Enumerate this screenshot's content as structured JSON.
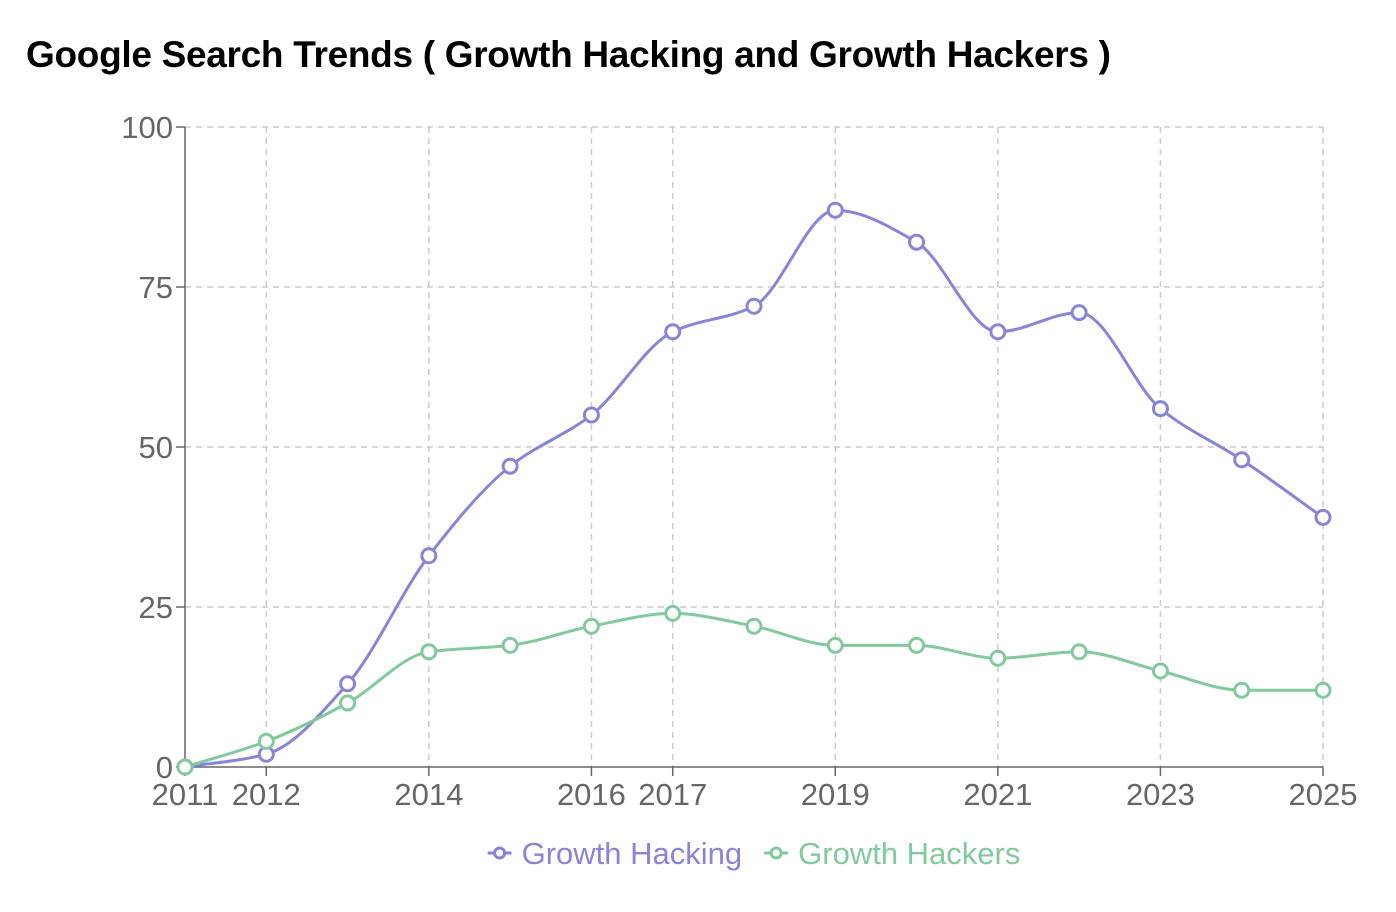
{
  "chart_data": {
    "type": "line",
    "title": "Google Search Trends ( Growth Hacking and Growth Hackers )",
    "xlabel": "",
    "ylabel": "",
    "x": [
      2011,
      2012,
      2013,
      2014,
      2015,
      2016,
      2017,
      2018,
      2019,
      2020,
      2021,
      2022,
      2023,
      2024,
      2025
    ],
    "x_ticks": [
      "2011",
      "2012",
      "2014",
      "2016",
      "2017",
      "2019",
      "2021",
      "2023",
      "2025"
    ],
    "y_ticks": [
      "0",
      "25",
      "50",
      "75",
      "100"
    ],
    "ylim": [
      0,
      100
    ],
    "grid": true,
    "legend_position": "bottom",
    "series": [
      {
        "name": "Growth Hacking",
        "color": "#8884d8",
        "values": [
          0,
          2,
          13,
          33,
          47,
          55,
          68,
          72,
          87,
          82,
          68,
          71,
          56,
          48,
          39
        ]
      },
      {
        "name": "Growth Hackers",
        "color": "#82ca9d",
        "values": [
          0,
          4,
          10,
          18,
          19,
          22,
          24,
          22,
          19,
          19,
          17,
          18,
          15,
          12,
          12
        ]
      }
    ]
  }
}
